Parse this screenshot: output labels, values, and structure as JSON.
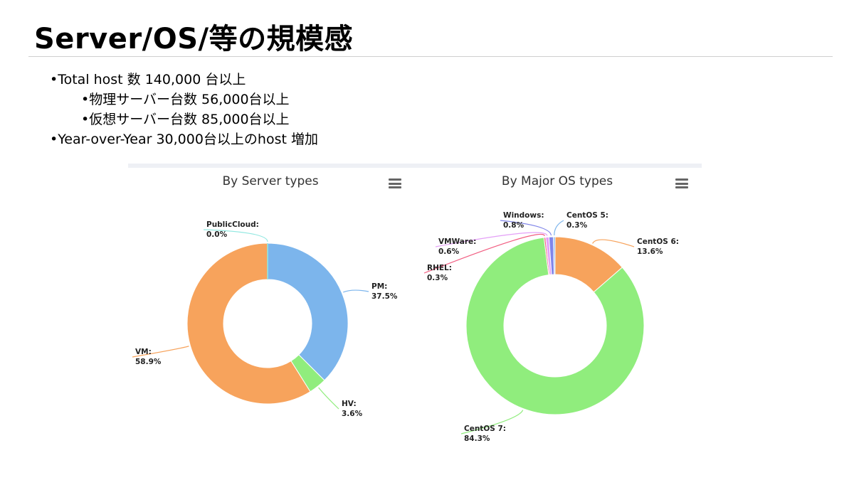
{
  "slide": {
    "title": "Server/OS/等の規模感",
    "bullets": [
      "•Total host 数 140,000 台以上",
      "•物理サーバー台数 56,000台以上",
      "•仮想サーバー台数 85,000台以上",
      "•Year-over-Year 30,000台以上のhost 増加"
    ]
  },
  "chart_data": [
    {
      "type": "pie",
      "title": "By Server types",
      "donut": true,
      "slices": [
        {
          "name": "PM",
          "label": "PM:",
          "value": 37.5,
          "value_label": "37.5%",
          "color": "#7cb5ec"
        },
        {
          "name": "HV",
          "label": "HV:",
          "value": 3.6,
          "value_label": "3.6%",
          "color": "#90ed7d"
        },
        {
          "name": "VM",
          "label": "VM:",
          "value": 58.9,
          "value_label": "58.9%",
          "color": "#f7a35c"
        },
        {
          "name": "PublicCloud",
          "label": "PublicCloud:",
          "value": 0.0,
          "value_label": "0.0%",
          "color": "#91e8e1"
        }
      ]
    },
    {
      "type": "pie",
      "title": "By Major OS types",
      "donut": true,
      "slices": [
        {
          "name": "CentOS 6",
          "label": "CentOS 6:",
          "value": 13.6,
          "value_label": "13.6%",
          "color": "#f7a35c"
        },
        {
          "name": "CentOS 7",
          "label": "CentOS 7:",
          "value": 84.3,
          "value_label": "84.3%",
          "color": "#90ed7d"
        },
        {
          "name": "RHEL",
          "label": "RHEL:",
          "value": 0.3,
          "value_label": "0.3%",
          "color": "#f15c80"
        },
        {
          "name": "VMWare",
          "label": "VMWare:",
          "value": 0.6,
          "value_label": "0.6%",
          "color": "#e4a0f7"
        },
        {
          "name": "Windows",
          "label": "Windows:",
          "value": 0.8,
          "value_label": "0.8%",
          "color": "#8085e9"
        },
        {
          "name": "CentOS 5",
          "label": "CentOS 5:",
          "value": 0.3,
          "value_label": "0.3%",
          "color": "#7cb5ec"
        }
      ]
    }
  ]
}
